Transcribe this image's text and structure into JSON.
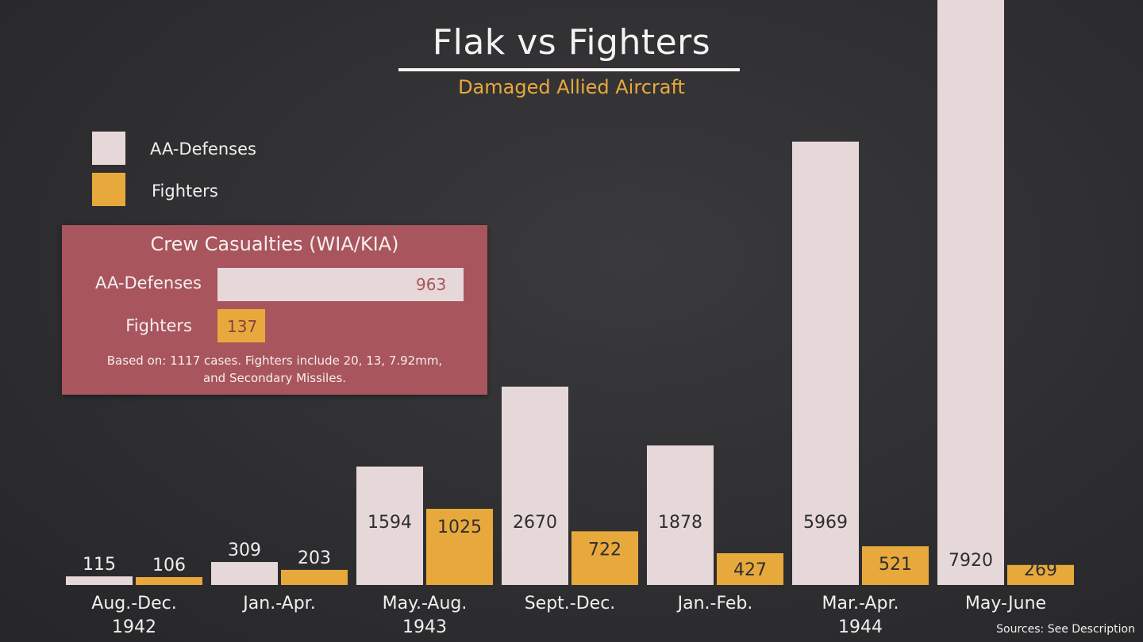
{
  "colors": {
    "aa": "#e6d8d9",
    "fighters": "#e8a93c",
    "panel": "#a8555d",
    "text_light": "#f3eeee",
    "text_dark": "#2e2e30"
  },
  "chart_data": {
    "type": "bar",
    "title": "Flak vs Fighters",
    "subtitle": "Damaged Allied Aircraft",
    "categories": [
      [
        "Aug.-Dec.",
        "1942"
      ],
      [
        "Jan.-Apr.",
        ""
      ],
      [
        "May.-Aug.",
        "1943"
      ],
      [
        "Sept.-Dec.",
        ""
      ],
      [
        "Jan.-Feb.",
        ""
      ],
      [
        "Mar.-Apr.",
        "1944"
      ],
      [
        "May-June",
        ""
      ]
    ],
    "series": [
      {
        "name": "AA-Defenses",
        "values": [
          115,
          309,
          1594,
          2670,
          1878,
          5969,
          7920
        ]
      },
      {
        "name": "Fighters",
        "values": [
          106,
          203,
          1025,
          722,
          427,
          521,
          269
        ]
      }
    ],
    "legend": "top-left",
    "grid": false
  },
  "legend": {
    "items": [
      "AA-Defenses",
      "Fighters"
    ]
  },
  "casualties": {
    "title": "Crew Casualties (WIA/KIA)",
    "rows": [
      {
        "label": "AA-Defenses",
        "value": 963
      },
      {
        "label": "Fighters",
        "value": 137
      }
    ],
    "note_line1": "Based on: 1117 cases. Fighters include 20, 13, 7.92mm,",
    "note_line2": "and Secondary Missiles."
  },
  "sources": "Sources: See Description"
}
